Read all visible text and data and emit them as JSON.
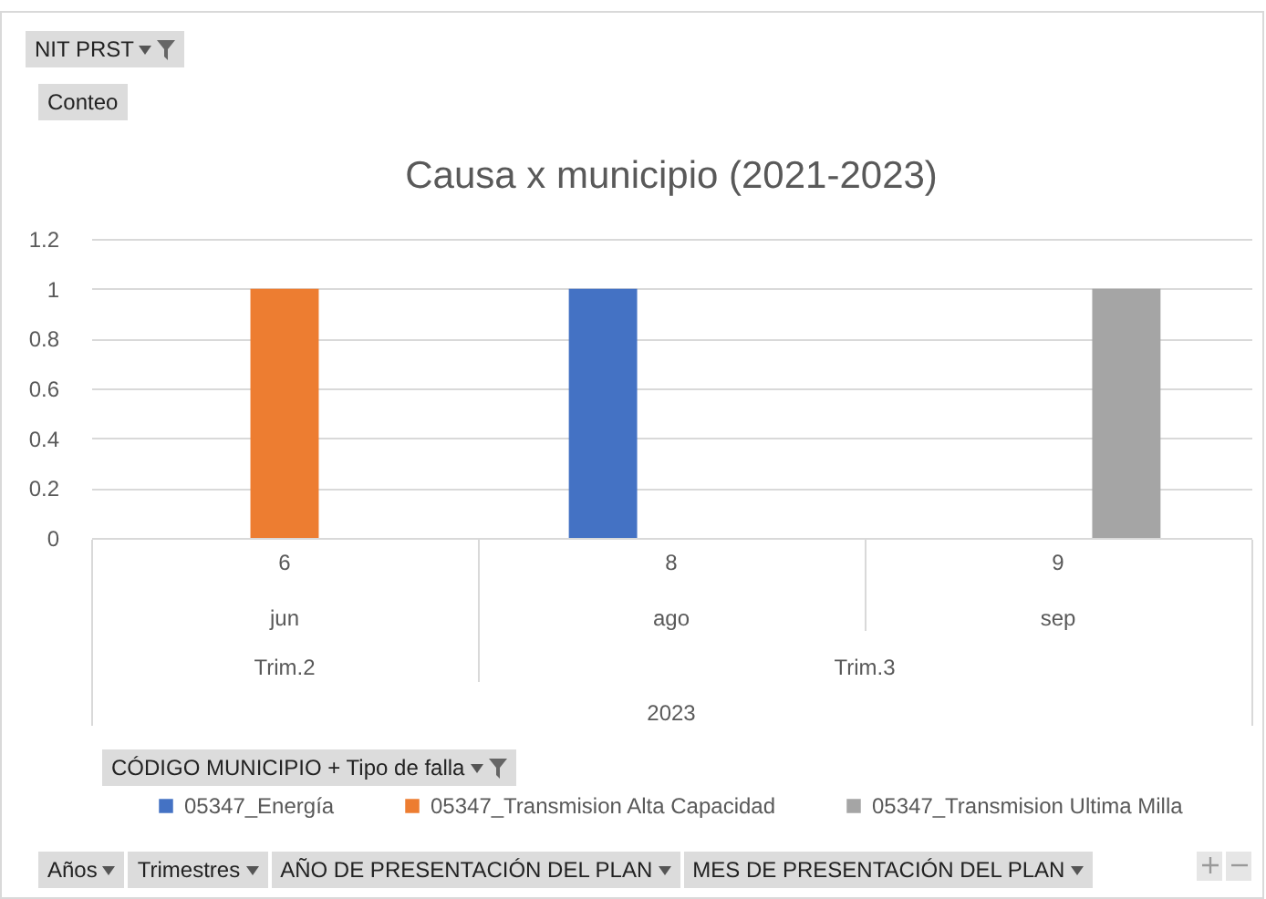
{
  "chart_data": {
    "type": "bar",
    "title": "Causa x municipio (2021-2023)",
    "categories": [
      "6",
      "8",
      "9"
    ],
    "series": [
      {
        "name": "05347_Energía",
        "color": "#4472c4",
        "values": [
          null,
          1,
          null
        ]
      },
      {
        "name": "05347_Transmision Alta Capacidad",
        "color": "#ed7d31",
        "values": [
          1,
          null,
          null
        ]
      },
      {
        "name": "05347_Transmision Ultima Milla",
        "color": "#a5a5a5",
        "values": [
          null,
          null,
          1
        ]
      }
    ],
    "ylim": [
      0,
      1.2
    ],
    "yticks": [
      0,
      0.2,
      0.4,
      0.6,
      0.8,
      1,
      1.2
    ],
    "grid": "y",
    "legend": "bottom",
    "annotations": [
      "jun",
      "ago",
      "sep",
      "Trim.2",
      "Trim.3",
      "2023",
      "NIT PRST",
      "Conteo",
      "CÓDIGO MUNICIPIO  + Tipo de falla",
      "Años",
      "Trimestres",
      "AÑO DE PRESENTACIÓN DEL PLAN",
      "MES DE PRESENTACIÓN DEL PLAN"
    ]
  }
}
